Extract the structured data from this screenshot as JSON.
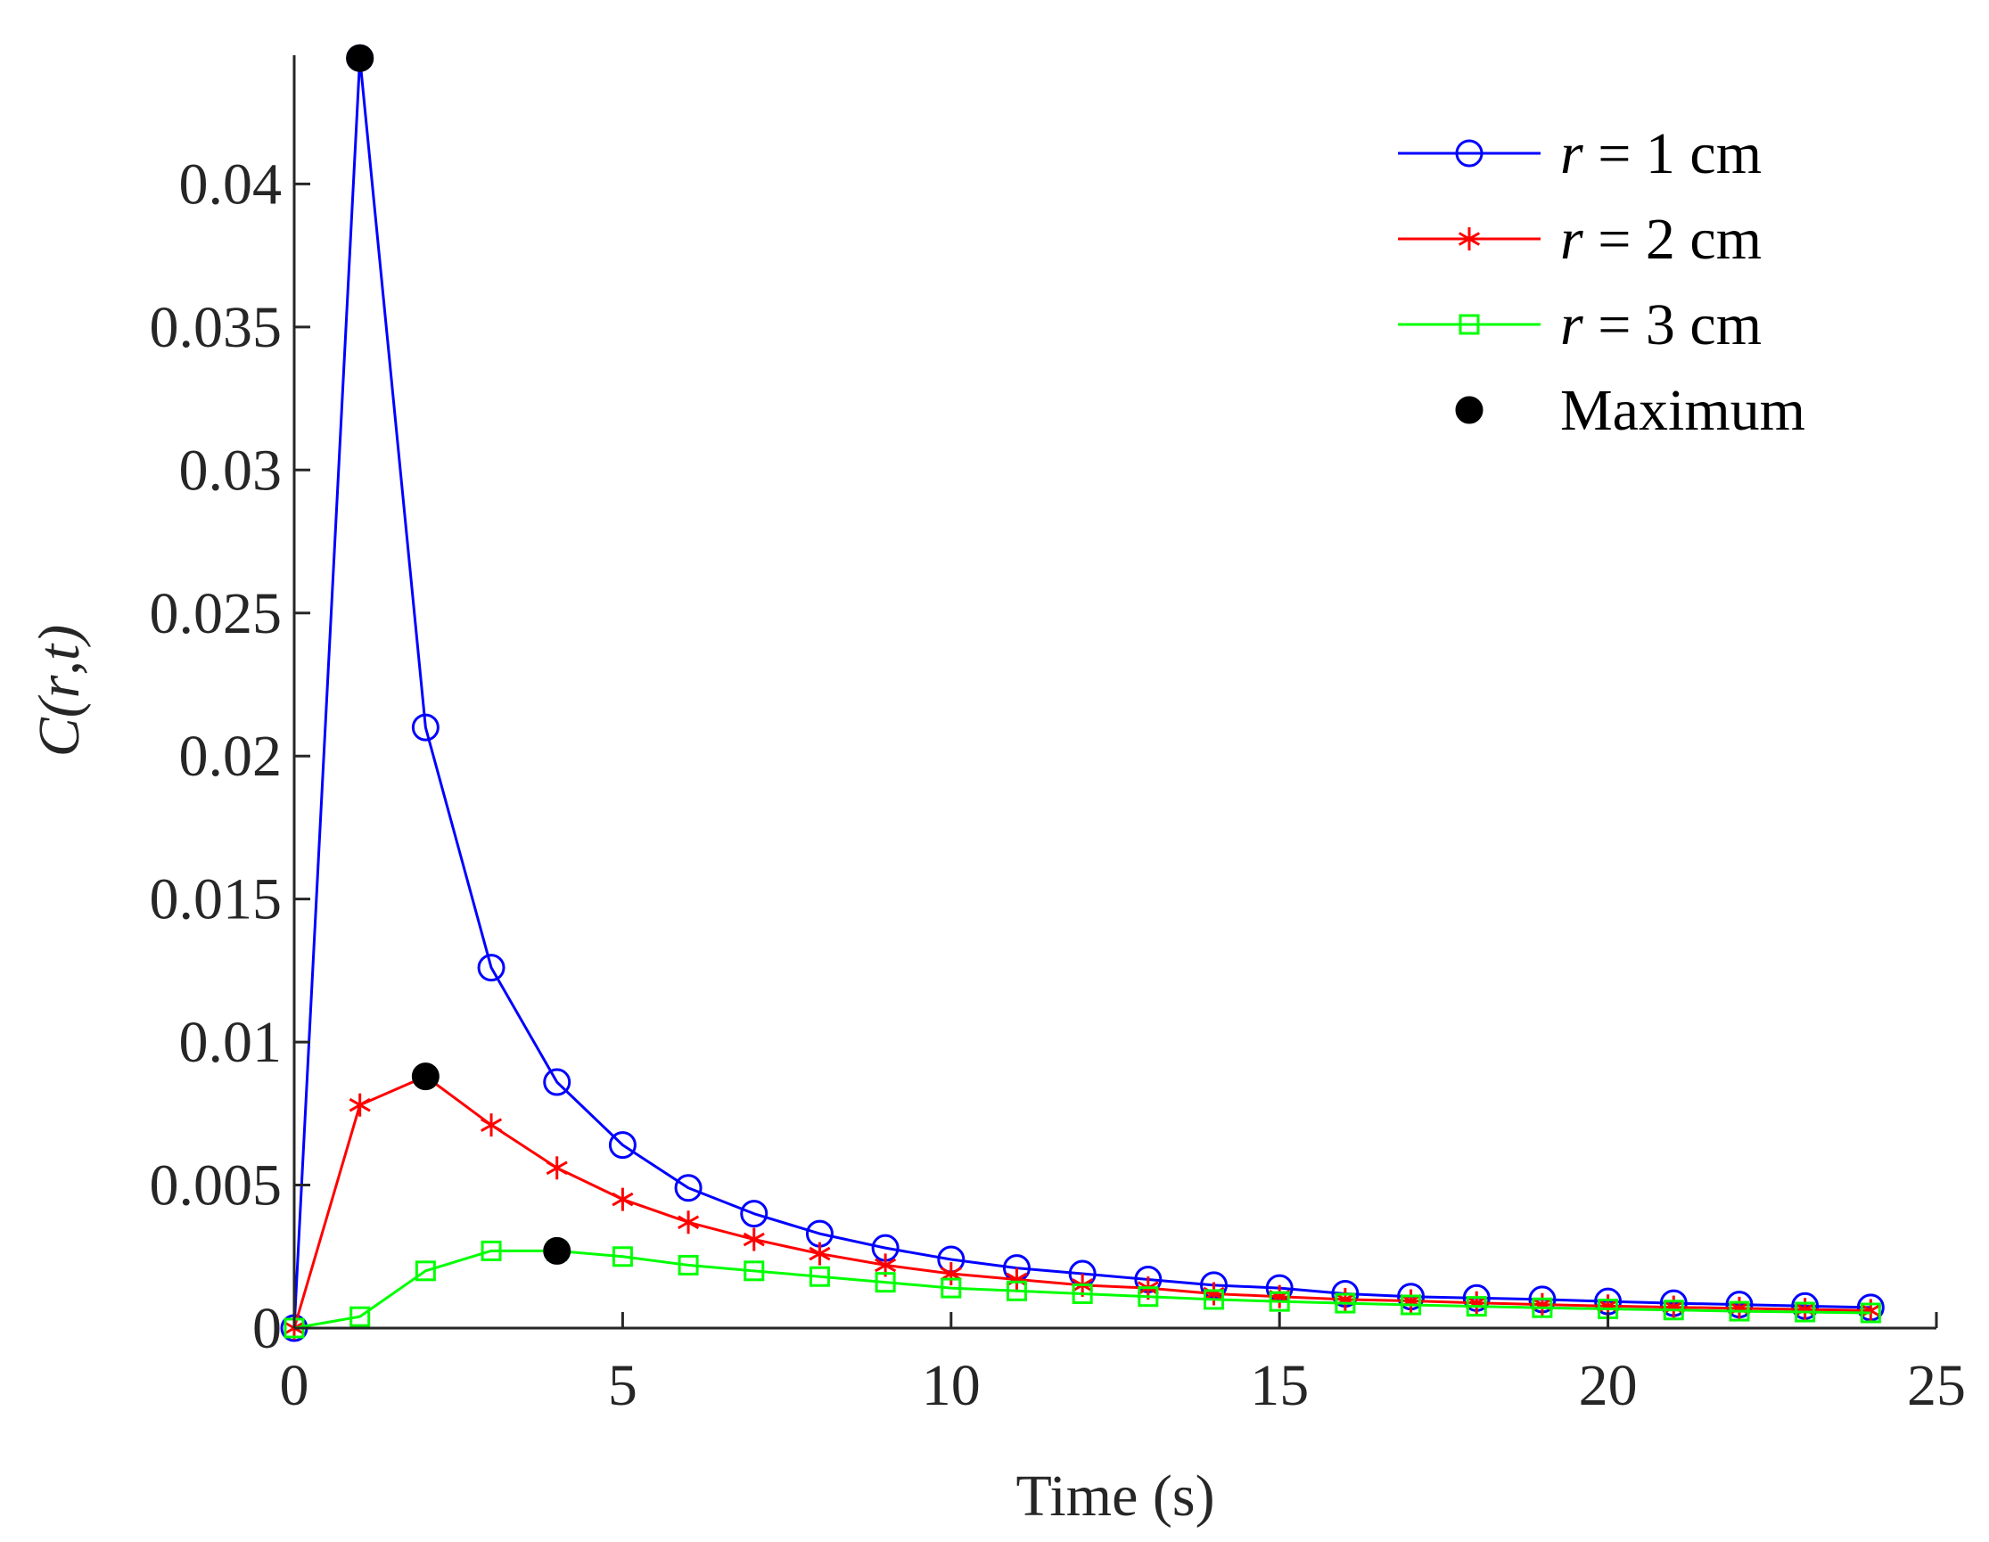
{
  "chart_data": {
    "type": "line",
    "title": "",
    "xlabel": "Time (s)",
    "ylabel_parts": [
      "C(",
      "r",
      ",",
      "t",
      ")"
    ],
    "xlim": [
      0,
      25
    ],
    "ylim": [
      0,
      0.0445
    ],
    "xticks": [
      0,
      5,
      10,
      15,
      20,
      25
    ],
    "xtick_labels": [
      "0",
      "5",
      "10",
      "15",
      "20",
      "25"
    ],
    "yticks": [
      0,
      0.005,
      0.01,
      0.015,
      0.02,
      0.025,
      0.03,
      0.035,
      0.04
    ],
    "ytick_labels": [
      "0",
      "0.005",
      "0.01",
      "0.015",
      "0.02",
      "0.025",
      "0.03",
      "0.035",
      "0.04"
    ],
    "grid": false,
    "legend_position": "top-right",
    "x": [
      0,
      1,
      2,
      3,
      4,
      5,
      6,
      7,
      8,
      9,
      10,
      11,
      12,
      13,
      14,
      15,
      16,
      17,
      18,
      19,
      20,
      21,
      22,
      23,
      24
    ],
    "series": [
      {
        "name": "r = 1 cm",
        "label_var": "r",
        "label_rest": " = 1 cm",
        "color": "#0000ff",
        "marker": "circle",
        "values": [
          0,
          0.0444,
          0.021,
          0.0126,
          0.0086,
          0.0064,
          0.0049,
          0.004,
          0.0033,
          0.0028,
          0.0024,
          0.0021,
          0.0019,
          0.0017,
          0.0015,
          0.0014,
          0.0012,
          0.0011,
          0.00105,
          0.001,
          0.00093,
          0.00087,
          0.00082,
          0.00077,
          0.00072
        ]
      },
      {
        "name": "r = 2 cm",
        "label_var": "r",
        "label_rest": " = 2 cm",
        "color": "#ff0000",
        "marker": "asterisk",
        "values": [
          0,
          0.0078,
          0.0088,
          0.0071,
          0.0056,
          0.0045,
          0.0037,
          0.0031,
          0.0026,
          0.0022,
          0.0019,
          0.0017,
          0.0015,
          0.0014,
          0.0012,
          0.0011,
          0.001,
          0.00095,
          0.00088,
          0.00082,
          0.00077,
          0.00073,
          0.00069,
          0.00065,
          0.00061
        ]
      },
      {
        "name": "r = 3 cm",
        "label_var": "r",
        "label_rest": " = 3 cm",
        "color": "#00ff00",
        "marker": "square",
        "values": [
          0,
          0.0004,
          0.002,
          0.0027,
          0.0027,
          0.0025,
          0.0022,
          0.002,
          0.0018,
          0.0016,
          0.0014,
          0.0013,
          0.0012,
          0.0011,
          0.001,
          0.00093,
          0.00087,
          0.00081,
          0.00076,
          0.00071,
          0.00067,
          0.00063,
          0.00059,
          0.00056,
          0.00053
        ]
      }
    ],
    "maximum": {
      "name": "Maximum",
      "color": "#000000",
      "points": [
        {
          "x": 1,
          "y": 0.0444
        },
        {
          "x": 2,
          "y": 0.0088
        },
        {
          "x": 4,
          "y": 0.0027
        }
      ]
    }
  }
}
